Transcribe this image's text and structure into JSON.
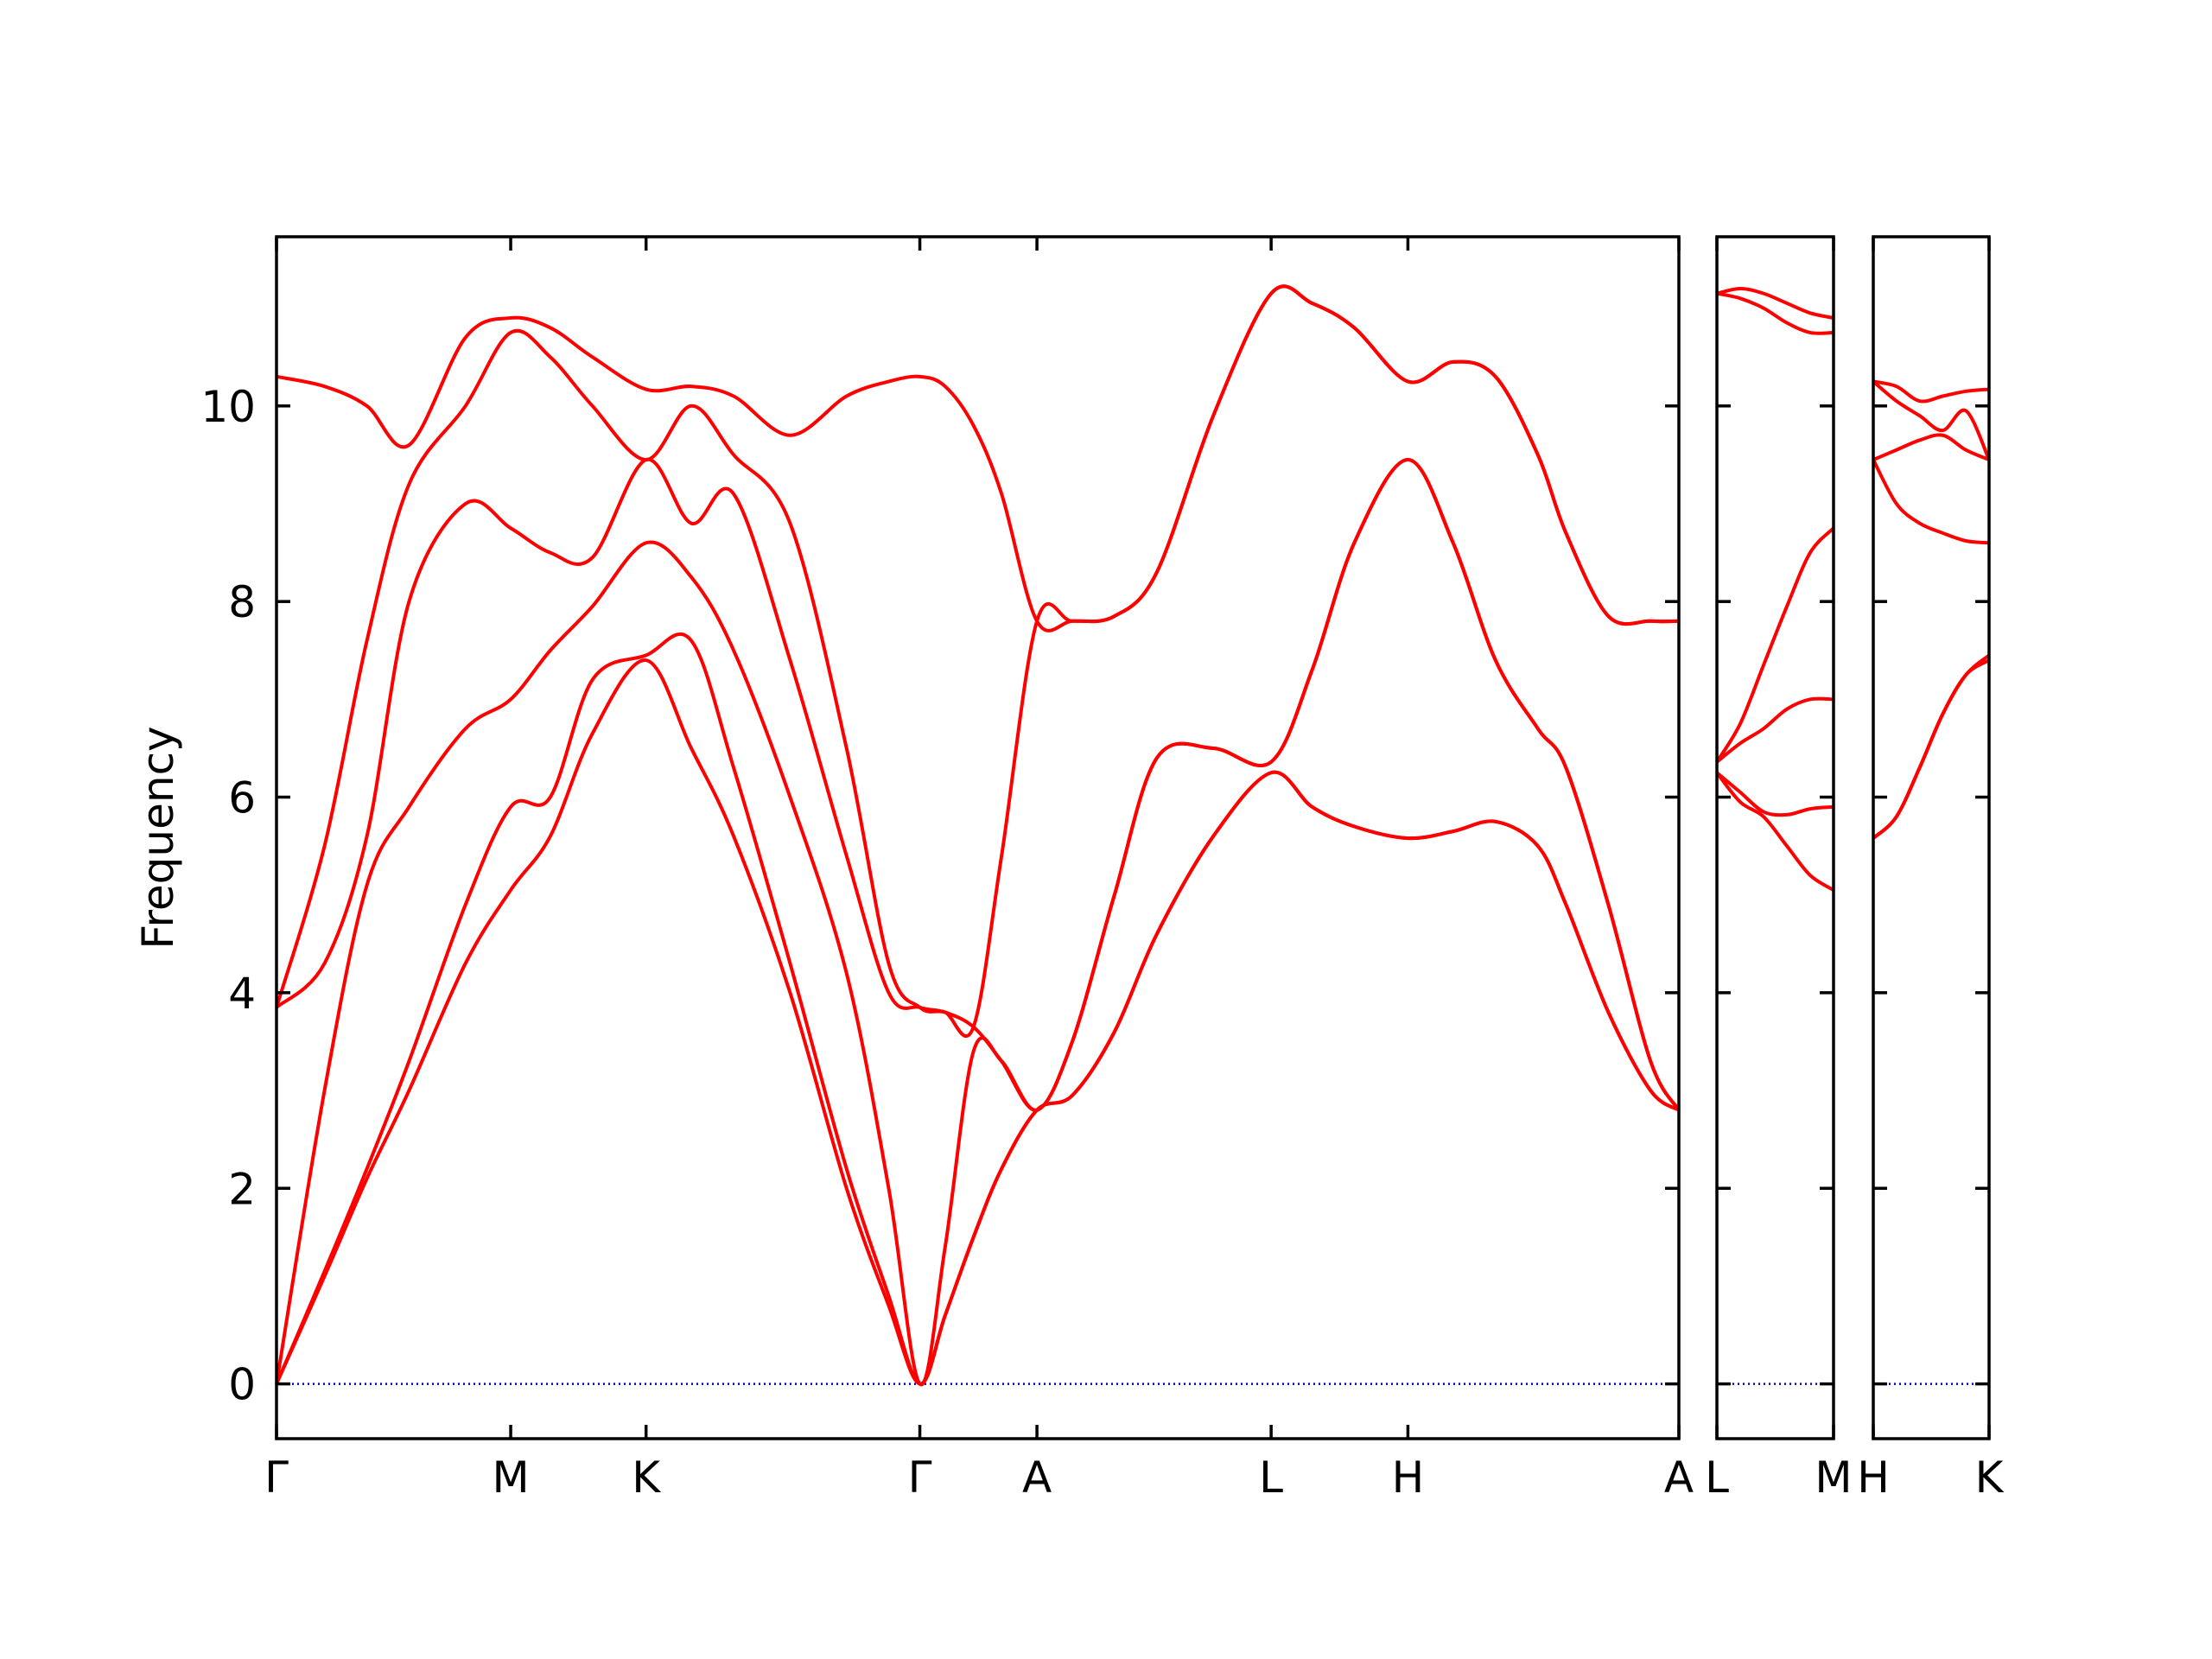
{
  "chart_data": [
    {
      "type": "line",
      "ylabel": "Frequency",
      "x": [
        0,
        0.205,
        0.386,
        0.566,
        0.807,
        1.0,
        1.169,
        1.349,
        1.578,
        1.771,
        1.952,
        2.193,
        2.434,
        2.614,
        2.747,
        2.855,
        2.976,
        3.096,
        3.247,
        3.398,
        3.578,
        3.759,
        4.0,
        4.247,
        4.422,
        4.602,
        4.831,
        5.024,
        5.205,
        5.386,
        5.506,
        5.687,
        5.867,
        5.988
      ],
      "series": [
        {
          "color": "#ff0000",
          "values": [
            0,
            1.1,
            2.1,
            3.0,
            4.3,
            5.05,
            5.6,
            6.65,
            7.4,
            6.5,
            5.6,
            4.0,
            2.0,
            0.8,
            0,
            0.7,
            1.5,
            2.2,
            2.8,
            2.95,
            3.6,
            4.6,
            5.6,
            6.25,
            5.9,
            5.7,
            5.58,
            5.65,
            5.75,
            5.5,
            4.9,
            3.8,
            3.0,
            2.8
          ]
        },
        {
          "color": "#ff0000",
          "values": [
            0,
            1.15,
            2.2,
            3.3,
            4.9,
            5.9,
            6.0,
            7.2,
            7.45,
            7.6,
            6.3,
            4.3,
            2.2,
            0.9,
            0,
            0.7,
            1.5,
            2.2,
            2.8,
            2.95,
            3.6,
            4.6,
            5.6,
            6.25,
            5.9,
            5.7,
            5.58,
            5.65,
            5.75,
            5.5,
            4.9,
            3.8,
            3.0,
            2.8
          ]
        },
        {
          "color": "#ff0000",
          "values": [
            0,
            3.0,
            5.1,
            5.9,
            6.7,
            7.0,
            7.5,
            7.95,
            8.6,
            8.25,
            7.5,
            6.0,
            4.2,
            2.0,
            0,
            1.4,
            3.4,
            3.3,
            2.8,
            3.5,
            5.0,
            6.4,
            6.5,
            6.36,
            7.3,
            8.6,
            9.45,
            8.6,
            7.4,
            6.7,
            6.3,
            4.9,
            3.3,
            2.8
          ]
        },
        {
          "color": "#ff0000",
          "values": [
            3.85,
            4.3,
            5.6,
            8.0,
            9.0,
            8.75,
            8.5,
            8.45,
            9.45,
            8.8,
            9.1,
            7.4,
            5.4,
            4.0,
            3.85,
            3.8,
            3.65,
            3.3,
            2.8,
            3.5,
            5.0,
            6.4,
            6.5,
            6.36,
            7.3,
            8.6,
            9.45,
            8.6,
            7.4,
            6.7,
            6.3,
            4.9,
            3.3,
            2.8
          ]
        },
        {
          "color": "#ff0000",
          "values": [
            3.85,
            5.5,
            7.6,
            9.2,
            10.0,
            10.75,
            10.5,
            10.0,
            9.45,
            10.0,
            9.5,
            8.8,
            6.5,
            4.3,
            3.85,
            3.8,
            3.65,
            5.4,
            7.8,
            7.8,
            7.85,
            8.3,
            9.9,
            11.15,
            11.05,
            10.8,
            10.25,
            10.45,
            10.3,
            9.5,
            8.7,
            7.85,
            7.8,
            7.8
          ]
        },
        {
          "color": "#ff0000",
          "values": [
            10.3,
            10.2,
            10.0,
            9.6,
            10.7,
            10.9,
            10.8,
            10.5,
            10.17,
            10.2,
            10.1,
            9.7,
            10.1,
            10.25,
            10.3,
            10.2,
            9.8,
            9.1,
            7.8,
            7.8,
            7.85,
            8.3,
            9.9,
            11.15,
            11.05,
            10.8,
            10.25,
            10.45,
            10.3,
            9.5,
            8.7,
            7.85,
            7.8,
            7.8
          ]
        }
      ],
      "xlim": [
        0,
        5.988
      ],
      "ylim": [
        -0.56,
        11.73
      ],
      "xticks": [
        {
          "value": 0,
          "label": "Γ"
        },
        {
          "value": 1.0,
          "label": "M"
        },
        {
          "value": 1.578,
          "label": "K"
        },
        {
          "value": 2.747,
          "label": "Γ"
        },
        {
          "value": 3.247,
          "label": "A"
        },
        {
          "value": 4.247,
          "label": "L"
        },
        {
          "value": 4.831,
          "label": "H"
        },
        {
          "value": 5.988,
          "label": "A"
        }
      ],
      "yticks": [
        0,
        2,
        4,
        6,
        8,
        10
      ],
      "hline": {
        "value": 0,
        "color": "#0000cc"
      }
    },
    {
      "type": "line",
      "x": [
        0,
        0.1,
        0.2,
        0.3,
        0.4,
        0.5
      ],
      "series": [
        {
          "color": "#ff0000",
          "values": [
            6.25,
            5.95,
            5.8,
            5.5,
            5.2,
            5.05
          ]
        },
        {
          "color": "#ff0000",
          "values": [
            6.25,
            6.05,
            5.85,
            5.82,
            5.88,
            5.9
          ]
        },
        {
          "color": "#ff0000",
          "values": [
            6.36,
            6.55,
            6.7,
            6.9,
            7.0,
            7.0
          ]
        },
        {
          "color": "#ff0000",
          "values": [
            6.36,
            6.75,
            7.35,
            7.95,
            8.5,
            8.75
          ]
        },
        {
          "color": "#ff0000",
          "values": [
            11.15,
            11.1,
            11.0,
            10.85,
            10.75,
            10.75
          ]
        },
        {
          "color": "#ff0000",
          "values": [
            11.15,
            11.2,
            11.15,
            11.05,
            10.95,
            10.9
          ]
        }
      ],
      "xlim": [
        0,
        0.5
      ],
      "ylim": [
        -0.56,
        11.73
      ],
      "xticks": [
        {
          "value": 0,
          "label": "L"
        },
        {
          "value": 0.5,
          "label": "M"
        }
      ],
      "hline": {
        "value": 0,
        "color": "#0000cc"
      }
    },
    {
      "type": "line",
      "x": [
        0,
        0.1,
        0.2,
        0.3,
        0.4,
        0.5
      ],
      "series": [
        {
          "color": "#ff0000",
          "values": [
            5.58,
            5.8,
            6.3,
            6.85,
            7.25,
            7.4
          ]
        },
        {
          "color": "#ff0000",
          "values": [
            5.58,
            5.8,
            6.3,
            6.85,
            7.25,
            7.45
          ]
        },
        {
          "color": "#ff0000",
          "values": [
            9.45,
            9.0,
            8.8,
            8.7,
            8.62,
            8.6
          ]
        },
        {
          "color": "#ff0000",
          "values": [
            9.45,
            9.55,
            9.65,
            9.7,
            9.55,
            9.45
          ]
        },
        {
          "color": "#ff0000",
          "values": [
            10.25,
            10.05,
            9.9,
            9.75,
            9.95,
            9.45
          ]
        },
        {
          "color": "#ff0000",
          "values": [
            10.25,
            10.2,
            10.05,
            10.1,
            10.15,
            10.17
          ]
        }
      ],
      "xlim": [
        0,
        0.5
      ],
      "ylim": [
        -0.56,
        11.73
      ],
      "xticks": [
        {
          "value": 0,
          "label": "H"
        },
        {
          "value": 0.5,
          "label": "K"
        }
      ],
      "hline": {
        "value": 0,
        "color": "#0000cc"
      }
    }
  ]
}
